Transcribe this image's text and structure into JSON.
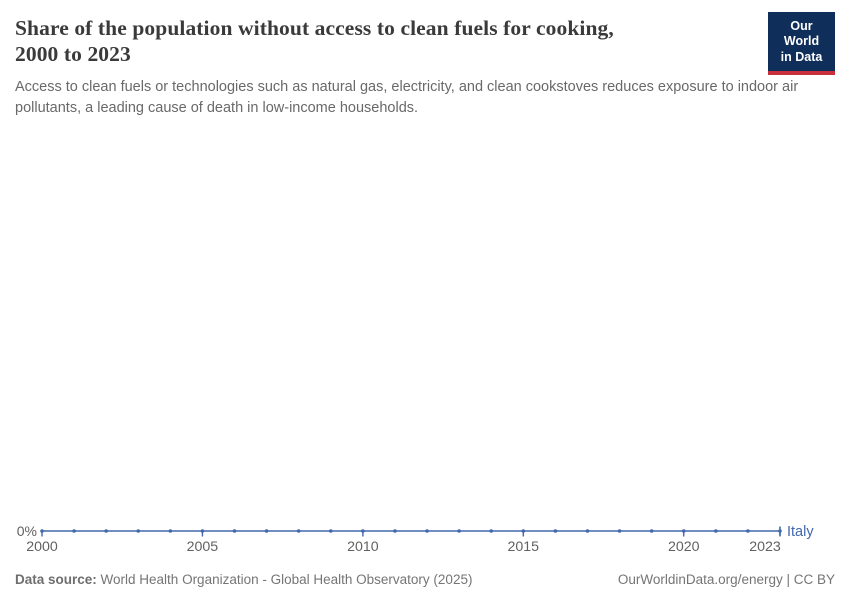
{
  "header": {
    "title_line1": "Share of the population without access to clean fuels for cooking,",
    "title_line2": "2000 to 2023",
    "subtitle": "Access to clean fuels or technologies such as natural gas, electricity, and clean cookstoves reduces exposure to indoor air pollutants, a leading cause of death in low-income households.",
    "logo": {
      "line1": "Our World",
      "line2": "in Data",
      "bg_color": "#0F2E5A",
      "stripe_color": "#C9303C"
    }
  },
  "chart_data": {
    "type": "line",
    "title": "Share of the population without access to clean fuels for cooking, 2000 to 2023",
    "entity": "Italy",
    "unit": "%",
    "x": [
      2000,
      2001,
      2002,
      2003,
      2004,
      2005,
      2006,
      2007,
      2008,
      2009,
      2010,
      2011,
      2012,
      2013,
      2014,
      2015,
      2016,
      2017,
      2018,
      2019,
      2020,
      2021,
      2022,
      2023
    ],
    "values": [
      0,
      0,
      0,
      0,
      0,
      0,
      0,
      0,
      0,
      0,
      0,
      0,
      0,
      0,
      0,
      0,
      0,
      0,
      0,
      0,
      0,
      0,
      0,
      0
    ],
    "xlim": [
      2000,
      2023
    ],
    "x_tick_labels": [
      "2000",
      "2005",
      "2010",
      "2015",
      "2020",
      "2023"
    ],
    "y_axis_label": "0%",
    "grid": false,
    "legend_position": "end-of-line",
    "line_color": "#4268AE",
    "axis_label_color": "#616161"
  },
  "footer": {
    "source_label": "Data source:",
    "source_text": " World Health Organization - Global Health Observatory (2025)",
    "right_text": "OurWorldinData.org/energy | CC BY"
  }
}
